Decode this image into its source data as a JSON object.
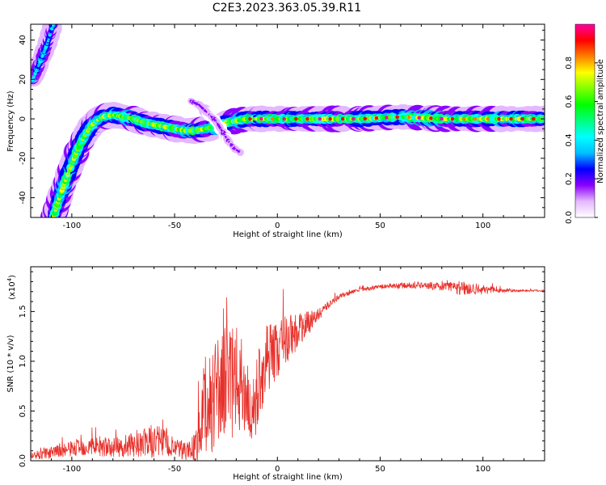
{
  "title": "C2E3.2023.363.05.39.R11",
  "chart_data": [
    {
      "type": "heatmap",
      "xlabel": "Height of straight line (km)",
      "ylabel": "Frequency (Hz)",
      "xlim": [
        -120,
        130
      ],
      "ylim": [
        -50,
        48
      ],
      "x_ticks": [
        -100,
        -50,
        0,
        50,
        100
      ],
      "y_ticks": [
        -40,
        -20,
        0,
        20,
        40
      ],
      "colorbar": {
        "label": "Normalized spectral amplitude",
        "range": [
          0,
          1
        ],
        "ticks": [
          0.0,
          0.2,
          0.4,
          0.6,
          0.8
        ],
        "tick_labels": [
          "0.0",
          "0.2",
          "0.4",
          "0.6",
          "0.8"
        ],
        "colormap": [
          "#ffffff",
          "#e4b8ff",
          "#8b00ff",
          "#0000ff",
          "#00bfff",
          "#00ffff",
          "#00ff7f",
          "#00ff00",
          "#7fff00",
          "#ffff00",
          "#ff8000",
          "#ff0000",
          "#ff00a0"
        ]
      },
      "features": [
        {
          "name": "",
          "points": [
            [
              -119,
              20
            ],
            [
              -115,
              30
            ],
            [
              -112,
              38
            ],
            [
              -110,
              45
            ],
            [
              -109,
              48
            ]
          ],
          "amplitude": 0.35,
          "width": 3
        },
        {
          "name": "",
          "points": [
            [
              -109,
              -50
            ],
            [
              -106,
              -40
            ],
            [
              -103,
              -31
            ],
            [
              -100,
              -23
            ],
            [
              -97,
              -15
            ],
            [
              -94,
              -9
            ],
            [
              -91,
              -4
            ],
            [
              -88,
              -1
            ],
            [
              -85,
              1
            ],
            [
              -80,
              2
            ],
            [
              -75,
              1
            ],
            [
              -70,
              0
            ],
            [
              -65,
              -2
            ],
            [
              -60,
              -3
            ],
            [
              -55,
              -4
            ],
            [
              -50,
              -5
            ],
            [
              -45,
              -6
            ],
            [
              -40,
              -6
            ],
            [
              -35,
              -5
            ],
            [
              -30,
              -4
            ],
            [
              -25,
              -2
            ],
            [
              -20,
              -1
            ],
            [
              -15,
              0
            ],
            [
              -10,
              0
            ],
            [
              0,
              0
            ],
            [
              20,
              0
            ],
            [
              40,
              0
            ],
            [
              60,
              1
            ],
            [
              80,
              0
            ],
            [
              100,
              0
            ],
            [
              130,
              0
            ]
          ],
          "amplitude": 0.6,
          "width": 4
        },
        {
          "name": "",
          "points": [
            [
              -42,
              9
            ],
            [
              -38,
              7
            ],
            [
              -34,
              3
            ],
            [
              -30,
              -1
            ],
            [
              -27,
              -6
            ],
            [
              -24,
              -11
            ],
            [
              -21,
              -15
            ],
            [
              -18,
              -17
            ]
          ],
          "amplitude": 0.15,
          "width": 2
        }
      ]
    },
    {
      "type": "line",
      "xlabel": "Height of straight line (km)",
      "ylabel": "SNR (10 * v/v)",
      "y_multiplier": "(x10",
      "y_multiplier_exp": "4",
      "xlim": [
        -120,
        130
      ],
      "ylim": [
        0,
        1.95
      ],
      "x_ticks": [
        -100,
        -50,
        0,
        50,
        100
      ],
      "y_ticks": [
        0.0,
        0.5,
        1.0,
        1.5
      ],
      "y_tick_labels": [
        "0.0",
        "0.5",
        "1.0",
        "1.5"
      ],
      "color": "#e8302a",
      "series": [
        {
          "x": [
            -120,
            -110,
            -100,
            -90,
            -80,
            -70,
            -60,
            -55,
            -50,
            -45,
            -40,
            -38,
            -35,
            -30,
            -25,
            -20,
            -15,
            -12,
            -10,
            -5,
            0,
            5,
            10,
            15,
            20,
            25,
            30,
            40,
            50,
            60,
            70,
            80,
            90,
            95,
            100,
            110,
            120,
            130
          ],
          "y": [
            0.05,
            0.08,
            0.12,
            0.15,
            0.13,
            0.15,
            0.2,
            0.18,
            0.12,
            0.1,
            0.14,
            0.25,
            0.5,
            0.7,
            0.75,
            0.8,
            0.7,
            0.35,
            0.7,
            1.05,
            1.1,
            1.25,
            1.3,
            1.38,
            1.47,
            1.57,
            1.65,
            1.72,
            1.75,
            1.76,
            1.76,
            1.75,
            1.74,
            1.73,
            1.72,
            1.71,
            1.71,
            1.71
          ],
          "noise": [
            0.04,
            0.06,
            0.08,
            0.1,
            0.1,
            0.12,
            0.18,
            0.15,
            0.1,
            0.1,
            0.14,
            0.3,
            0.55,
            0.55,
            0.55,
            0.55,
            0.45,
            0.25,
            0.4,
            0.35,
            0.3,
            0.25,
            0.2,
            0.12,
            0.06,
            0.04,
            0.03,
            0.02,
            0.02,
            0.03,
            0.03,
            0.04,
            0.08,
            0.07,
            0.05,
            0.02,
            0.01,
            0.01
          ]
        }
      ]
    }
  ]
}
